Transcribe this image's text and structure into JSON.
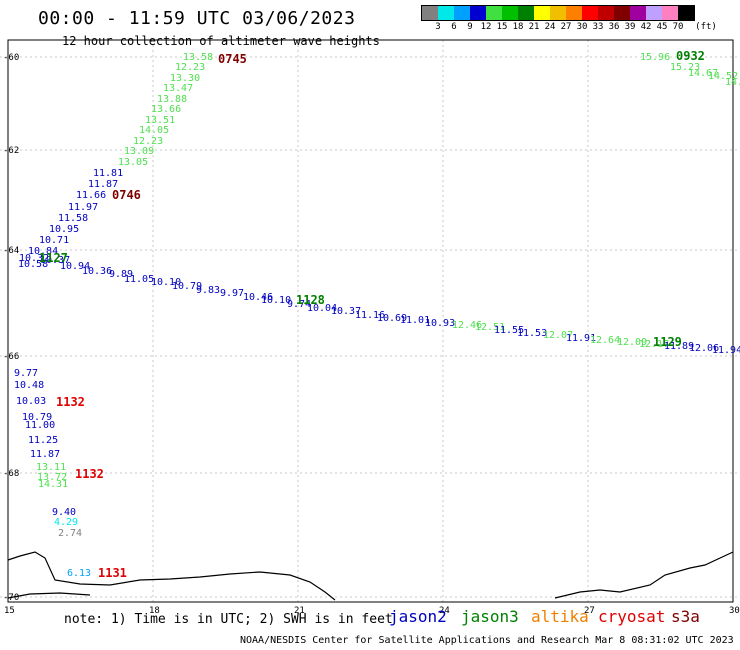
{
  "header": {
    "title": "00:00 - 11:59 UTC 03/06/2023",
    "subtitle": "12 hour collection of altimeter wave heights"
  },
  "scale": {
    "colors": [
      "#808080",
      "#00e8e8",
      "#00a0ff",
      "#0000d0",
      "#40e040",
      "#00c000",
      "#008000",
      "#ffff00",
      "#f0c000",
      "#ff8000",
      "#ff0000",
      "#c00000",
      "#800000",
      "#a000a0",
      "#c0a0ff",
      "#ff80c0",
      "#000000"
    ],
    "labels": [
      "3",
      "6",
      "9",
      "12",
      "15",
      "18",
      "21",
      "24",
      "27",
      "30",
      "33",
      "36",
      "39",
      "42",
      "45",
      "70",
      "(ft)"
    ]
  },
  "axes": {
    "lat_labels": [
      "-60",
      "-62",
      "-64",
      "-66",
      "-68",
      "-70"
    ],
    "lon_labels": [
      "15",
      "18",
      "21",
      "24",
      "27",
      "30"
    ]
  },
  "track_labels": [
    {
      "text": "0745",
      "color": "#800000",
      "bold": true
    },
    {
      "text": "0746",
      "color": "#800000",
      "bold": true
    },
    {
      "text": "1127",
      "color": "#008000",
      "bold": true
    },
    {
      "text": "1128",
      "color": "#008000",
      "bold": true
    },
    {
      "text": "1129",
      "color": "#008000",
      "bold": true
    },
    {
      "text": "0932",
      "color": "#008000",
      "bold": true
    },
    {
      "text": "1132",
      "color": "#e00000",
      "bold": true
    },
    {
      "text": "1132",
      "color": "#e00000",
      "bold": true
    },
    {
      "text": "1131",
      "color": "#e00000",
      "bold": true
    }
  ],
  "wave_values": [
    {
      "text": "13.58",
      "color": "#50e050"
    },
    {
      "text": "12.23",
      "color": "#50e050"
    },
    {
      "text": "13.30",
      "color": "#50e050"
    },
    {
      "text": "13.47",
      "color": "#50e050"
    },
    {
      "text": "13.88",
      "color": "#50e050"
    },
    {
      "text": "13.66",
      "color": "#50e050"
    },
    {
      "text": "13.51",
      "color": "#50e050"
    },
    {
      "text": "14.05",
      "color": "#50e050"
    },
    {
      "text": "12.23",
      "color": "#50e050"
    },
    {
      "text": "13.09",
      "color": "#50e050"
    },
    {
      "text": "13.05",
      "color": "#50e050"
    },
    {
      "text": "11.81",
      "color": "#0000c0"
    },
    {
      "text": "11.87",
      "color": "#0000c0"
    },
    {
      "text": "11.66",
      "color": "#0000c0"
    },
    {
      "text": "11.97",
      "color": "#0000c0"
    },
    {
      "text": "11.58",
      "color": "#0000c0"
    },
    {
      "text": "10.95",
      "color": "#0000c0"
    },
    {
      "text": "10.71",
      "color": "#0000c0"
    },
    {
      "text": "10.84",
      "color": "#0000c0"
    },
    {
      "text": "10.32",
      "color": "#0000c0"
    },
    {
      "text": "10.58",
      "color": "#0000c0"
    },
    {
      "text": "10.37",
      "color": "#0000c0"
    },
    {
      "text": "10.94",
      "color": "#0000c0"
    },
    {
      "text": "10.36",
      "color": "#0000c0"
    },
    {
      "text": "9.89",
      "color": "#0000c0"
    },
    {
      "text": "11.05",
      "color": "#0000c0"
    },
    {
      "text": "10.10",
      "color": "#0000c0"
    },
    {
      "text": "10.79",
      "color": "#0000c0"
    },
    {
      "text": "9.83",
      "color": "#0000c0"
    },
    {
      "text": "9.97",
      "color": "#0000c0"
    },
    {
      "text": "10.46",
      "color": "#0000c0"
    },
    {
      "text": "10.10",
      "color": "#0000c0"
    },
    {
      "text": "9.74",
      "color": "#0000c0"
    },
    {
      "text": "10.04",
      "color": "#0000c0"
    },
    {
      "text": "10.37",
      "color": "#0000c0"
    },
    {
      "text": "11.16",
      "color": "#0000c0"
    },
    {
      "text": "10.69",
      "color": "#0000c0"
    },
    {
      "text": "11.01",
      "color": "#0000c0"
    },
    {
      "text": "10.93",
      "color": "#0000c0"
    },
    {
      "text": "12.46",
      "color": "#50e050"
    },
    {
      "text": "12.51",
      "color": "#50e050"
    },
    {
      "text": "11.55",
      "color": "#0000c0"
    },
    {
      "text": "11.53",
      "color": "#0000c0"
    },
    {
      "text": "12.07",
      "color": "#50e050"
    },
    {
      "text": "11.91",
      "color": "#0000c0"
    },
    {
      "text": "12.64",
      "color": "#50e050"
    },
    {
      "text": "12.09",
      "color": "#50e050"
    },
    {
      "text": "12.17",
      "color": "#50e050"
    },
    {
      "text": "11.89",
      "color": "#0000c0"
    },
    {
      "text": "12.06",
      "color": "#0000c0"
    },
    {
      "text": "11.94",
      "color": "#0000c0"
    },
    {
      "text": "15.96",
      "color": "#50e050"
    },
    {
      "text": "15.23",
      "color": "#50e050"
    },
    {
      "text": "14.67",
      "color": "#50e050"
    },
    {
      "text": "14.52",
      "color": "#50e050"
    },
    {
      "text": "14.",
      "color": "#50e050"
    },
    {
      "text": "9.77",
      "color": "#0000c0"
    },
    {
      "text": "10.48",
      "color": "#0000c0"
    },
    {
      "text": "10.03",
      "color": "#0000c0"
    },
    {
      "text": "10.79",
      "color": "#0000c0"
    },
    {
      "text": "11.00",
      "color": "#0000c0"
    },
    {
      "text": "11.25",
      "color": "#0000c0"
    },
    {
      "text": "11.87",
      "color": "#0000c0"
    },
    {
      "text": "13.11",
      "color": "#50e050"
    },
    {
      "text": "13.72",
      "color": "#50e050"
    },
    {
      "text": "14.31",
      "color": "#50e050"
    },
    {
      "text": "9.40",
      "color": "#0000c0"
    },
    {
      "text": "4.29",
      "color": "#00e8e8"
    },
    {
      "text": "2.74",
      "color": "#808080"
    },
    {
      "text": "6.13",
      "color": "#00a0ff"
    }
  ],
  "legend": {
    "note": "note: 1) Time is in UTC; 2) SWH is in feet",
    "satellites": [
      {
        "name": "jason2",
        "color": "#0000c0"
      },
      {
        "name": "jason3",
        "color": "#008000"
      },
      {
        "name": "altika",
        "color": "#f08000"
      },
      {
        "name": "cryosat",
        "color": "#e00000"
      },
      {
        "name": "s3a",
        "color": "#800000"
      }
    ]
  },
  "footer": "NOAA/NESDIS Center for Satellite Applications and Research   Mar  8 08:31:02 UTC 2023"
}
